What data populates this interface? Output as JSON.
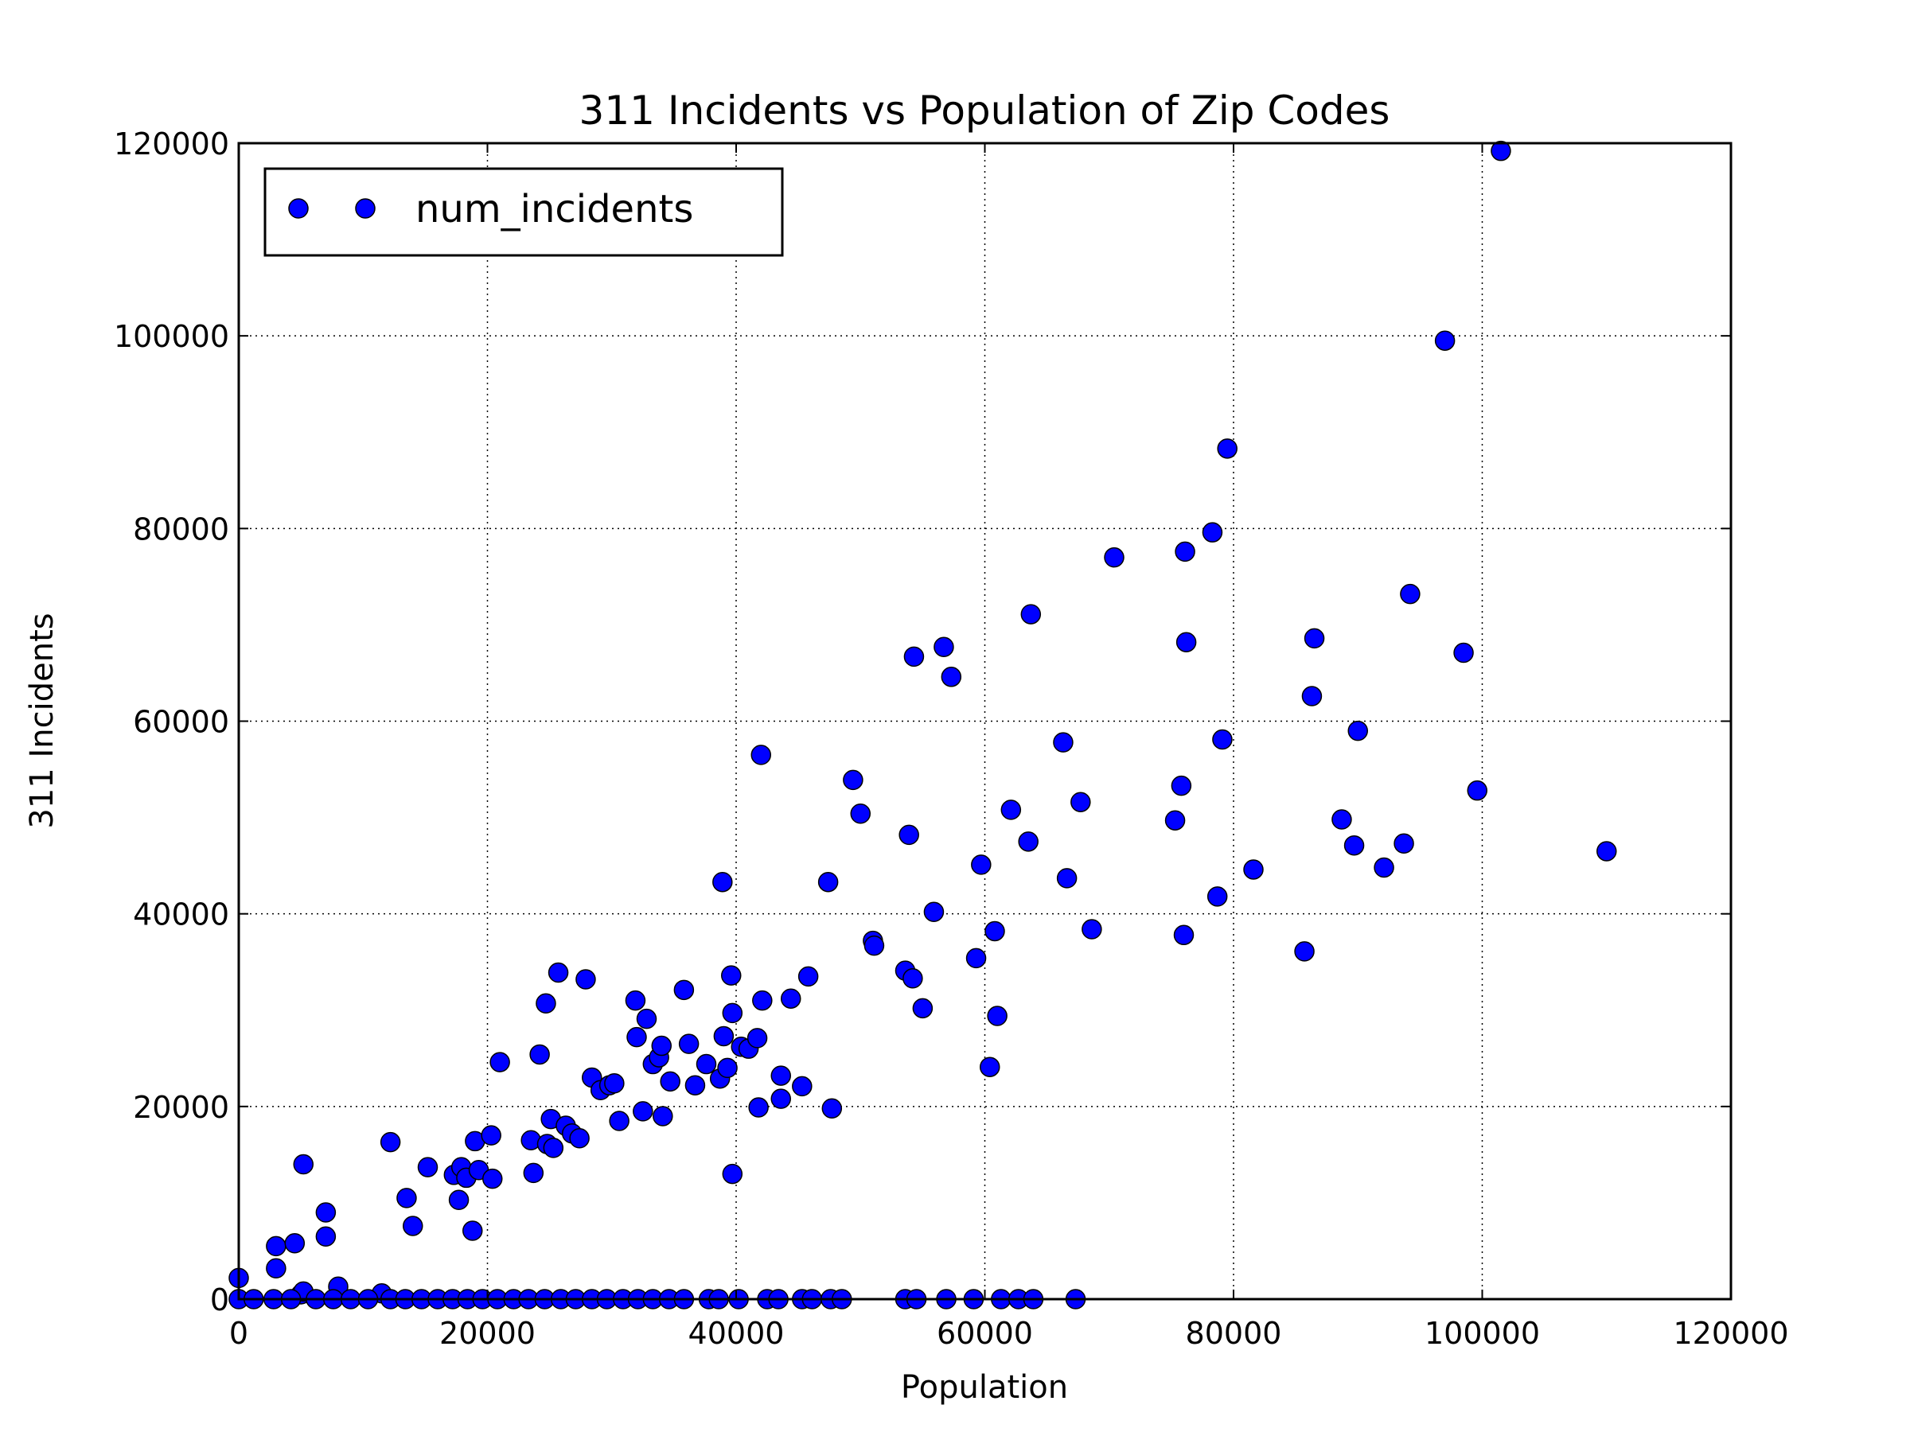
{
  "chart_data": {
    "type": "scatter",
    "title": "311 Incidents vs Population of Zip Codes",
    "xlabel": "Population",
    "ylabel": "311 Incidents",
    "xlim": [
      0,
      120000
    ],
    "ylim": [
      0,
      120000
    ],
    "xticks": [
      "0",
      "20000",
      "40000",
      "60000",
      "80000",
      "100000",
      "120000"
    ],
    "yticks": [
      "0",
      "20000",
      "40000",
      "60000",
      "80000",
      "100000",
      "120000"
    ],
    "grid": true,
    "legend_position": "top-left",
    "marker_color": "#0000ff",
    "series": [
      {
        "name": "num_incidents",
        "points": [
          [
            0,
            2200
          ],
          [
            3000,
            3200
          ],
          [
            3000,
            5500
          ],
          [
            4500,
            5800
          ],
          [
            5000,
            500
          ],
          [
            5200,
            800
          ],
          [
            5200,
            14000
          ],
          [
            7000,
            9000
          ],
          [
            7000,
            6500
          ],
          [
            8000,
            1300
          ],
          [
            11500,
            600
          ],
          [
            12200,
            16300
          ],
          [
            13500,
            10500
          ],
          [
            14000,
            7600
          ],
          [
            15200,
            13700
          ],
          [
            17300,
            12900
          ],
          [
            17700,
            10300
          ],
          [
            17900,
            13700
          ],
          [
            18300,
            12600
          ],
          [
            18800,
            7100
          ],
          [
            19000,
            16400
          ],
          [
            19300,
            13400
          ],
          [
            20300,
            17000
          ],
          [
            20400,
            12500
          ],
          [
            21000,
            24600
          ],
          [
            23500,
            16500
          ],
          [
            23700,
            13100
          ],
          [
            24200,
            25400
          ],
          [
            24700,
            30700
          ],
          [
            24800,
            16100
          ],
          [
            25100,
            18700
          ],
          [
            25300,
            15700
          ],
          [
            25700,
            33900
          ],
          [
            26300,
            18000
          ],
          [
            26800,
            17200
          ],
          [
            27400,
            16700
          ],
          [
            27900,
            33200
          ],
          [
            28400,
            23000
          ],
          [
            29100,
            21700
          ],
          [
            29800,
            22200
          ],
          [
            30200,
            22400
          ],
          [
            30600,
            18500
          ],
          [
            31900,
            31000
          ],
          [
            32000,
            27200
          ],
          [
            32500,
            19500
          ],
          [
            32800,
            29100
          ],
          [
            33300,
            24400
          ],
          [
            33800,
            25100
          ],
          [
            34000,
            26300
          ],
          [
            34100,
            19000
          ],
          [
            34700,
            22600
          ],
          [
            35800,
            32100
          ],
          [
            36200,
            26500
          ],
          [
            36700,
            22200
          ],
          [
            37600,
            24400
          ],
          [
            38700,
            22900
          ],
          [
            38900,
            43300
          ],
          [
            39000,
            27300
          ],
          [
            39300,
            24000
          ],
          [
            39600,
            33600
          ],
          [
            39700,
            29700
          ],
          [
            39700,
            13000
          ],
          [
            40400,
            26200
          ],
          [
            41000,
            26000
          ],
          [
            41700,
            27100
          ],
          [
            41800,
            19900
          ],
          [
            42000,
            56500
          ],
          [
            42100,
            31000
          ],
          [
            43600,
            23200
          ],
          [
            43600,
            20800
          ],
          [
            44400,
            31200
          ],
          [
            45300,
            22100
          ],
          [
            45800,
            33500
          ],
          [
            47400,
            43300
          ],
          [
            47700,
            19800
          ],
          [
            49400,
            53900
          ],
          [
            50000,
            50400
          ],
          [
            51000,
            37200
          ],
          [
            51100,
            36700
          ],
          [
            53600,
            34100
          ],
          [
            53900,
            48200
          ],
          [
            54200,
            33300
          ],
          [
            54300,
            66700
          ],
          [
            55000,
            30200
          ],
          [
            55900,
            40200
          ],
          [
            56700,
            67700
          ],
          [
            57300,
            64600
          ],
          [
            59300,
            35400
          ],
          [
            59700,
            45100
          ],
          [
            60400,
            24100
          ],
          [
            60800,
            38200
          ],
          [
            61000,
            29400
          ],
          [
            62100,
            50800
          ],
          [
            63500,
            47500
          ],
          [
            63700,
            71100
          ],
          [
            66300,
            57800
          ],
          [
            66600,
            43700
          ],
          [
            67700,
            51600
          ],
          [
            68600,
            38400
          ],
          [
            70400,
            77000
          ],
          [
            75300,
            49700
          ],
          [
            75800,
            53300
          ],
          [
            76000,
            37800
          ],
          [
            76100,
            77600
          ],
          [
            76200,
            68200
          ],
          [
            78300,
            79600
          ],
          [
            78700,
            41800
          ],
          [
            79100,
            58100
          ],
          [
            79500,
            88300
          ],
          [
            81600,
            44600
          ],
          [
            85700,
            36100
          ],
          [
            86300,
            62600
          ],
          [
            86500,
            68600
          ],
          [
            88700,
            49800
          ],
          [
            89700,
            47100
          ],
          [
            90000,
            59000
          ],
          [
            92100,
            44800
          ],
          [
            93700,
            47300
          ],
          [
            94200,
            73200
          ],
          [
            97000,
            99500
          ],
          [
            98500,
            67100
          ],
          [
            99600,
            52800
          ],
          [
            101500,
            119200
          ],
          [
            110000,
            46500
          ],
          [
            0,
            0
          ],
          [
            1200,
            0
          ],
          [
            2800,
            0
          ],
          [
            4200,
            0
          ],
          [
            6200,
            0
          ],
          [
            7600,
            0
          ],
          [
            9000,
            0
          ],
          [
            10400,
            0
          ],
          [
            12200,
            0
          ],
          [
            13400,
            0
          ],
          [
            14700,
            0
          ],
          [
            16000,
            0
          ],
          [
            17200,
            0
          ],
          [
            18400,
            0
          ],
          [
            19600,
            0
          ],
          [
            20800,
            0
          ],
          [
            22100,
            0
          ],
          [
            23300,
            0
          ],
          [
            24600,
            0
          ],
          [
            25900,
            0
          ],
          [
            27100,
            0
          ],
          [
            28400,
            0
          ],
          [
            29600,
            0
          ],
          [
            30900,
            0
          ],
          [
            32100,
            0
          ],
          [
            33300,
            0
          ],
          [
            34600,
            0
          ],
          [
            35800,
            0
          ],
          [
            37800,
            0
          ],
          [
            38600,
            0
          ],
          [
            40200,
            0
          ],
          [
            42500,
            0
          ],
          [
            43400,
            0
          ],
          [
            45300,
            0
          ],
          [
            46100,
            0
          ],
          [
            47600,
            0
          ],
          [
            48500,
            0
          ],
          [
            53600,
            0
          ],
          [
            54500,
            0
          ],
          [
            56900,
            0
          ],
          [
            59100,
            0
          ],
          [
            61300,
            0
          ],
          [
            62700,
            0
          ],
          [
            63900,
            0
          ],
          [
            67300,
            0
          ]
        ]
      }
    ]
  }
}
